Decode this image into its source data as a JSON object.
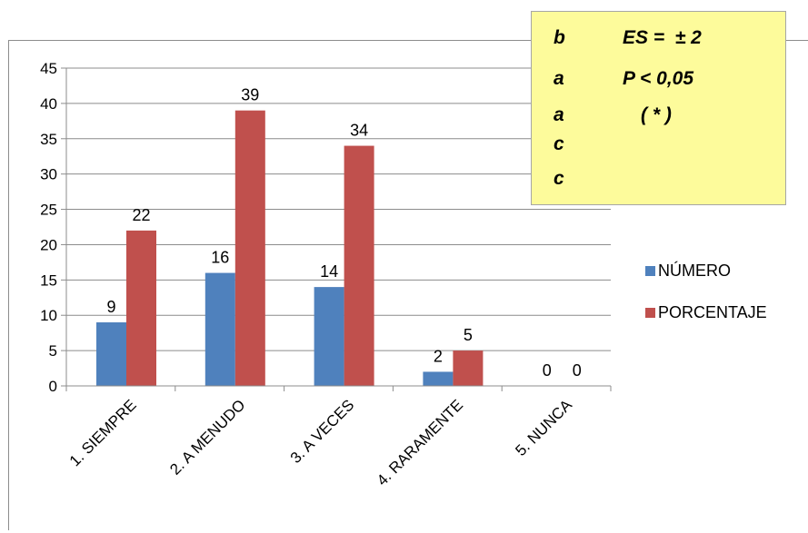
{
  "chart_data": {
    "type": "bar",
    "categories": [
      "1. SIEMPRE",
      "2. A MENUDO",
      "3. A VECES",
      "4. RARAMENTE",
      "5. NUNCA"
    ],
    "series": [
      {
        "name": "NÚMERO",
        "values": [
          9,
          16,
          14,
          2,
          0
        ]
      },
      {
        "name": "PORCENTAJE",
        "values": [
          22,
          39,
          34,
          5,
          0
        ]
      }
    ],
    "ylim": [
      0,
      45
    ],
    "yticks": [
      0,
      5,
      10,
      15,
      20,
      25,
      30,
      35,
      40,
      45
    ],
    "grid": true,
    "legend": "right",
    "colors": {
      "NÚMERO": "#4f81bd",
      "PORCENTAJE": "#c0504d"
    }
  },
  "note": {
    "rows": [
      {
        "letter": "b",
        "text": "ES =  ± 2"
      },
      {
        "letter": "a",
        "text": "P < 0,05"
      },
      {
        "letter": "a",
        "text": "( * )"
      },
      {
        "letter": "c",
        "text": ""
      },
      {
        "letter": "c",
        "text": ""
      }
    ]
  }
}
